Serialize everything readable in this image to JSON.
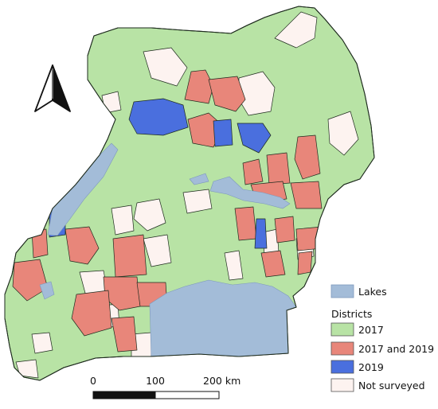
{
  "colors": {
    "lakes": "#a3bcd8",
    "d2017": "#b8e3a5",
    "d2017_2019": "#e8867a",
    "d2019": "#4a6fde",
    "not_surveyed": "#fdf3f0",
    "outline": "#1e2b1e"
  },
  "legend": {
    "lakes_label": "Lakes",
    "section_title": "Districts",
    "items": [
      {
        "label": "2017",
        "color": "#b8e3a5"
      },
      {
        "label": "2017 and 2019",
        "color": "#e8867a"
      },
      {
        "label": "2019",
        "color": "#4a6fde"
      },
      {
        "label": "Not surveyed",
        "color": "#fdf3f0"
      }
    ]
  },
  "scale_bar": {
    "ticks": [
      "0",
      "100",
      "200 km"
    ]
  },
  "north_arrow": {
    "icon": "north-arrow-icon"
  }
}
